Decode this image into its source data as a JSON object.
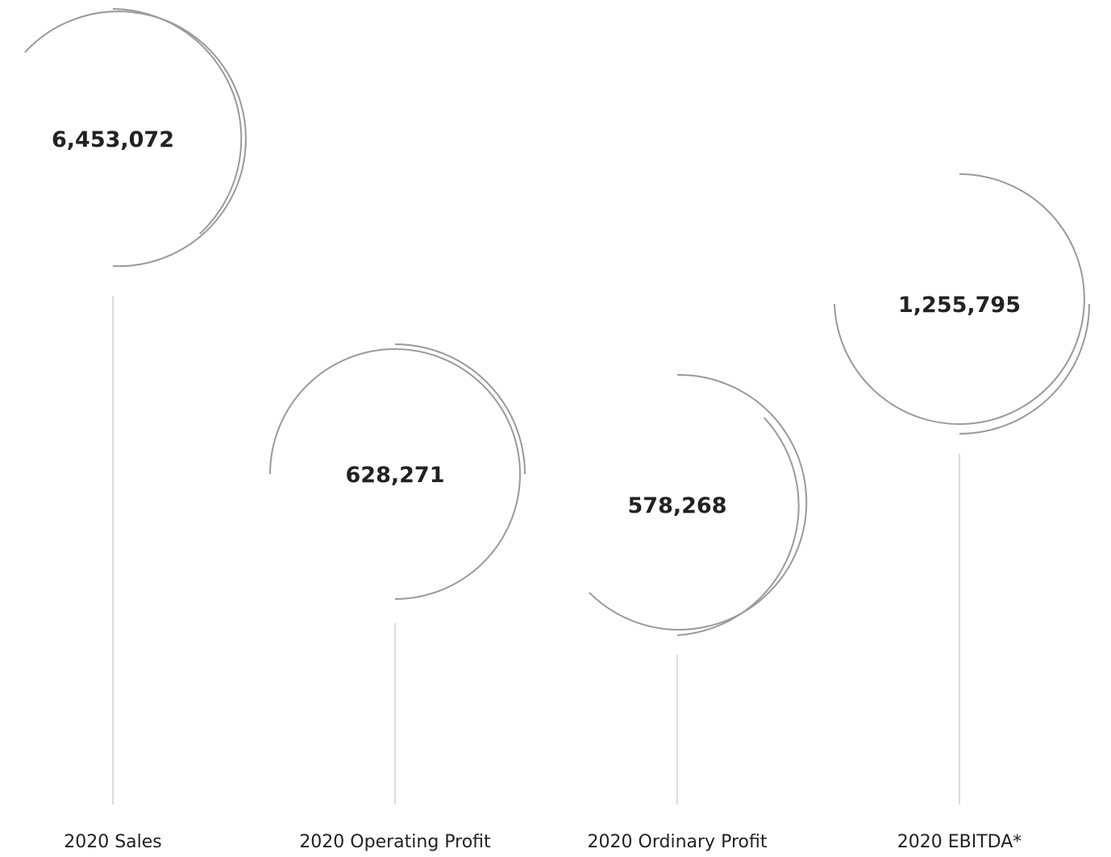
{
  "style": {
    "ring_color": "#9a9a9a",
    "stem_color": "#c4c4c4",
    "text_color": "#222222"
  },
  "metrics": [
    {
      "label": "2020 Sales",
      "value": "6,453,072"
    },
    {
      "label": "2020 Operating Profit",
      "value": "628,271"
    },
    {
      "label": "2020 Ordinary Profit",
      "value": "578,268"
    },
    {
      "label": "2020 EBITDA*",
      "value": "1,255,795"
    }
  ]
}
